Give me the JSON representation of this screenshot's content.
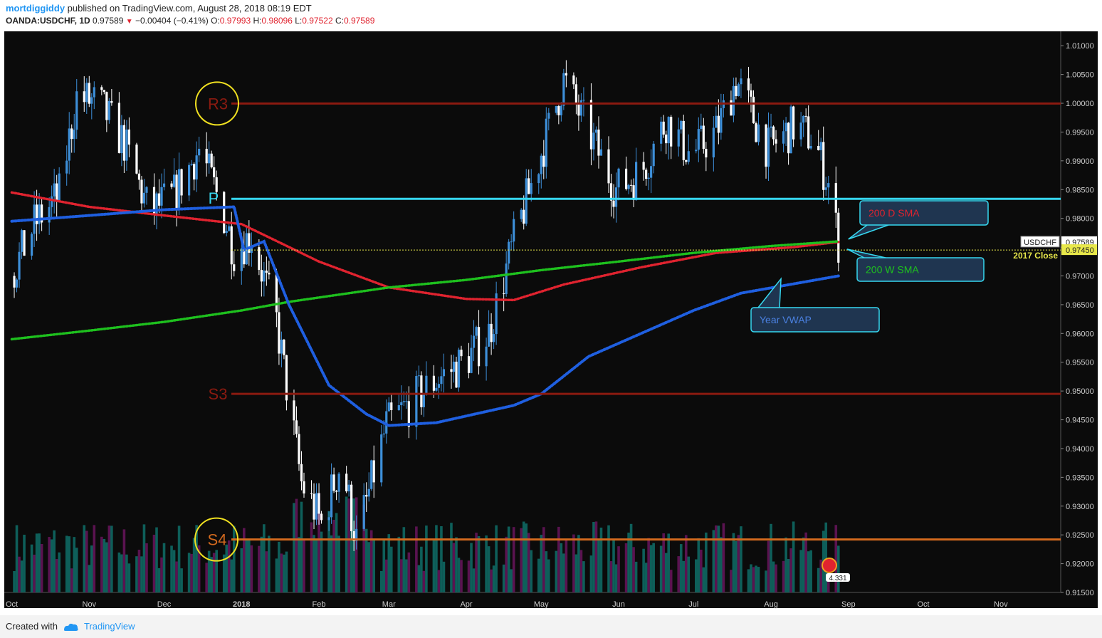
{
  "header": {
    "author": "mortdiggiddy",
    "published": " published on TradingView.com, August 28, 2018 08:19 EDT",
    "symbol": "OANDA:USDCHF, 1D",
    "last": "0.97589",
    "change": "−0.00404 (−0.41%)",
    "o_label": "O:",
    "o": "0.97993",
    "h_label": "H:",
    "h": "0.98096",
    "l_label": "L:",
    "l": "0.97522",
    "c_label": "C:",
    "c": "0.97589"
  },
  "footer": {
    "created": "Created with",
    "brand": "TradingView"
  },
  "colors": {
    "background": "#0b0b0b",
    "candle_up": "#3d8fd9",
    "candle_down": "#ffffff",
    "sma200d": "#e0232f",
    "sma200w": "#1ec01e",
    "vwap": "#1f5fe0",
    "pivot": "#36d8f0",
    "levels": "#8b1a10",
    "s4": "#d2691e",
    "close2017": "#e8e84a",
    "vol_a": "#0e5f5a",
    "vol_b": "#5a1350",
    "callout_border": "#36d8f0",
    "callout_fill": "#1f3550"
  },
  "chart_data": {
    "type": "candlestick",
    "symbol": "USDCHF",
    "timeframe": "1D",
    "ylim": [
      0.915,
      1.0125
    ],
    "y_ticks": [
      "1.01000",
      "1.00500",
      "1.00000",
      "0.99500",
      "0.99000",
      "0.98500",
      "0.98000",
      "0.97500",
      "0.97000",
      "0.96500",
      "0.96000",
      "0.95500",
      "0.95000",
      "0.94500",
      "0.94000",
      "0.93500",
      "0.93000",
      "0.92500",
      "0.92000",
      "0.91500"
    ],
    "x_ticks": [
      "Oct",
      "Nov",
      "Dec",
      "2018",
      "Feb",
      "Mar",
      "Apr",
      "May",
      "Jun",
      "Jul",
      "Aug",
      "Sep",
      "Oct",
      "Nov"
    ],
    "price_path": [
      {
        "date": "2017-10-01",
        "close": 0.97
      },
      {
        "date": "2017-10-10",
        "close": 0.979
      },
      {
        "date": "2017-10-20",
        "close": 0.984
      },
      {
        "date": "2017-10-27",
        "close": 1.001
      },
      {
        "date": "2017-11-05",
        "close": 1.0
      },
      {
        "date": "2017-11-15",
        "close": 0.993
      },
      {
        "date": "2017-11-25",
        "close": 0.981
      },
      {
        "date": "2017-12-05",
        "close": 0.984
      },
      {
        "date": "2017-12-15",
        "close": 0.992
      },
      {
        "date": "2017-12-24",
        "close": 0.982
      },
      {
        "date": "2017-12-29",
        "close": 0.9745
      },
      {
        "date": "2018-01-05",
        "close": 0.977
      },
      {
        "date": "2018-01-15",
        "close": 0.962
      },
      {
        "date": "2018-01-25",
        "close": 0.934
      },
      {
        "date": "2018-02-02",
        "close": 0.927
      },
      {
        "date": "2018-02-10",
        "close": 0.938
      },
      {
        "date": "2018-02-16",
        "close": 0.924
      },
      {
        "date": "2018-02-28",
        "close": 0.944
      },
      {
        "date": "2018-03-10",
        "close": 0.948
      },
      {
        "date": "2018-03-20",
        "close": 0.952
      },
      {
        "date": "2018-03-31",
        "close": 0.955
      },
      {
        "date": "2018-04-10",
        "close": 0.96
      },
      {
        "date": "2018-04-20",
        "close": 0.976
      },
      {
        "date": "2018-04-30",
        "close": 0.99
      },
      {
        "date": "2018-05-10",
        "close": 1.004
      },
      {
        "date": "2018-05-20",
        "close": 0.995
      },
      {
        "date": "2018-05-31",
        "close": 0.985
      },
      {
        "date": "2018-06-10",
        "close": 0.988
      },
      {
        "date": "2018-06-20",
        "close": 0.997
      },
      {
        "date": "2018-06-30",
        "close": 0.991
      },
      {
        "date": "2018-07-10",
        "close": 0.995
      },
      {
        "date": "2018-07-18",
        "close": 1.004
      },
      {
        "date": "2018-07-31",
        "close": 0.992
      },
      {
        "date": "2018-08-10",
        "close": 0.996
      },
      {
        "date": "2018-08-18",
        "close": 0.994
      },
      {
        "date": "2018-08-24",
        "close": 0.986
      },
      {
        "date": "2018-08-28",
        "close": 0.97589
      }
    ],
    "series": [
      {
        "name": "200 D SMA",
        "values": [
          {
            "date": "2017-10-01",
            "value": 0.9845
          },
          {
            "date": "2017-11-01",
            "value": 0.982
          },
          {
            "date": "2017-12-01",
            "value": 0.9805
          },
          {
            "date": "2018-01-01",
            "value": 0.979
          },
          {
            "date": "2018-02-01",
            "value": 0.9725
          },
          {
            "date": "2018-03-01",
            "value": 0.968
          },
          {
            "date": "2018-04-01",
            "value": 0.966
          },
          {
            "date": "2018-04-20",
            "value": 0.9658
          },
          {
            "date": "2018-05-10",
            "value": 0.9685
          },
          {
            "date": "2018-06-10",
            "value": 0.9715
          },
          {
            "date": "2018-07-10",
            "value": 0.974
          },
          {
            "date": "2018-08-10",
            "value": 0.975
          },
          {
            "date": "2018-08-28",
            "value": 0.9759
          }
        ]
      },
      {
        "name": "200 W SMA",
        "values": [
          {
            "date": "2017-10-01",
            "value": 0.959
          },
          {
            "date": "2017-11-01",
            "value": 0.9605
          },
          {
            "date": "2017-12-01",
            "value": 0.962
          },
          {
            "date": "2018-01-01",
            "value": 0.964
          },
          {
            "date": "2018-01-20",
            "value": 0.9655
          },
          {
            "date": "2018-03-01",
            "value": 0.968
          },
          {
            "date": "2018-04-01",
            "value": 0.9693
          },
          {
            "date": "2018-05-01",
            "value": 0.971
          },
          {
            "date": "2018-06-01",
            "value": 0.9725
          },
          {
            "date": "2018-07-01",
            "value": 0.974
          },
          {
            "date": "2018-08-01",
            "value": 0.9752
          },
          {
            "date": "2018-08-28",
            "value": 0.976
          }
        ]
      },
      {
        "name": "Year VWAP",
        "values": [
          {
            "date": "2017-10-01",
            "value": 0.9795
          },
          {
            "date": "2017-11-01",
            "value": 0.9805
          },
          {
            "date": "2017-12-01",
            "value": 0.9815
          },
          {
            "date": "2017-12-29",
            "value": 0.982
          },
          {
            "date": "2018-01-02",
            "value": 0.9745
          },
          {
            "date": "2018-01-10",
            "value": 0.976
          },
          {
            "date": "2018-01-20",
            "value": 0.965
          },
          {
            "date": "2018-02-05",
            "value": 0.951
          },
          {
            "date": "2018-02-20",
            "value": 0.946
          },
          {
            "date": "2018-03-01",
            "value": 0.944
          },
          {
            "date": "2018-03-20",
            "value": 0.9445
          },
          {
            "date": "2018-04-20",
            "value": 0.9475
          },
          {
            "date": "2018-05-01",
            "value": 0.9495
          },
          {
            "date": "2018-05-20",
            "value": 0.956
          },
          {
            "date": "2018-06-10",
            "value": 0.96
          },
          {
            "date": "2018-07-01",
            "value": 0.964
          },
          {
            "date": "2018-07-20",
            "value": 0.967
          },
          {
            "date": "2018-08-28",
            "value": 0.97
          }
        ]
      }
    ],
    "levels": [
      {
        "label": "R3",
        "value": 0.99995
      },
      {
        "label": "P",
        "value": 0.9834
      },
      {
        "label": "S3",
        "value": 0.9495
      },
      {
        "label": "S4",
        "value": 0.9242
      },
      {
        "label": "2017 Close",
        "value": 0.9745
      }
    ],
    "price_tags": [
      {
        "label": "USDCHF",
        "value": "0.97589"
      },
      {
        "label": "2017 Close",
        "value": "0.97450"
      }
    ],
    "annotations": [
      "200 D SMA",
      "200 W SMA",
      "Year VWAP"
    ],
    "volume_badge": "4.331"
  }
}
